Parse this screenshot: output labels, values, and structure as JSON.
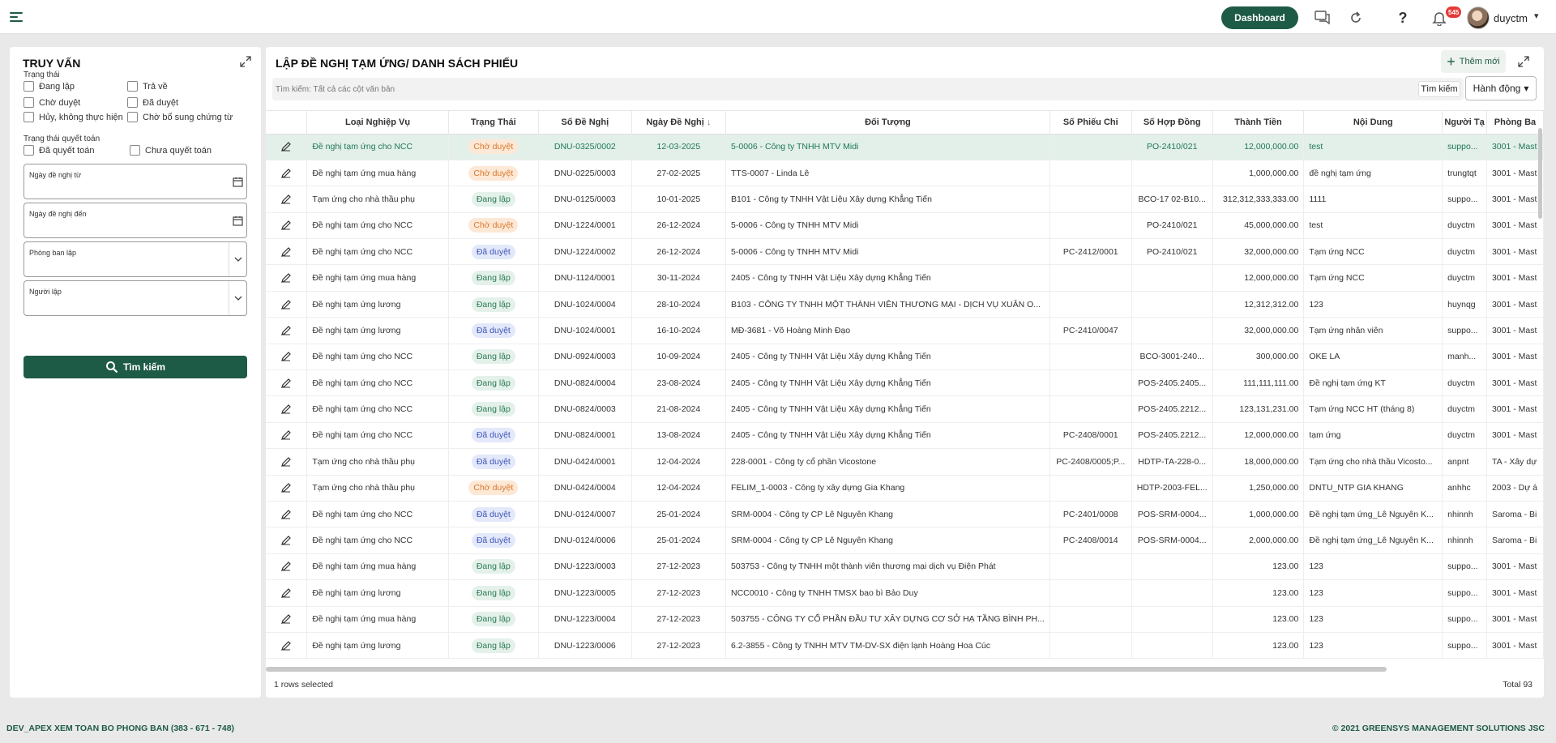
{
  "header": {
    "dashboard_label": "Dashboard",
    "notification_count": "545",
    "username": "duyctm"
  },
  "filter": {
    "title": "TRUY VẤN",
    "status_label": "Trạng thái",
    "status_options": [
      "Đang lập",
      "Trả về",
      "Chờ duyệt",
      "Đã duyệt",
      "Hủy, không thực hiện",
      "Chờ bổ sung chứng từ"
    ],
    "settlement_label": "Trạng thái quyết toán",
    "settlement_options": [
      "Đã quyết toán",
      "Chưa quyết toán"
    ],
    "date_from_label": "Ngày đề nghị từ",
    "date_to_label": "Ngày đề nghị đến",
    "department_label": "Phòng ban lập",
    "creator_label": "Người lập",
    "search_button": "Tìm kiếm"
  },
  "main": {
    "title": "LẬP ĐỀ NGHỊ TẠM ỨNG/ DANH SÁCH PHIẾU",
    "add_button": "Thêm mới",
    "search_placeholder": "Tìm kiếm: Tất cả các cột văn bản",
    "search_button": "Tìm kiếm",
    "actions_button": "Hành động",
    "columns": [
      "Loại Nghiệp Vụ",
      "Trạng Thái",
      "Số Đề Nghị",
      "Ngày Đề Nghị",
      "Đối Tượng",
      "Số Phiếu Chi",
      "Số Hợp Đồng",
      "Thành Tiền",
      "Nội Dung",
      "Người Tạ",
      "Phòng Ba"
    ],
    "rows": [
      {
        "type": "Đề nghị tạm ứng cho NCC",
        "status": "Chờ duyệt",
        "code": "wait",
        "no": "DNU-0325/0002",
        "date": "12-03-2025",
        "party": "5-0006 - Công ty TNHH MTV Midi",
        "pc": "",
        "hd": "PO-2410/021",
        "amount": "12,000,000.00",
        "content": "test",
        "creator": "suppo...",
        "dept": "3001 - Mast"
      },
      {
        "type": "Đề nghị tạm ứng mua hàng",
        "status": "Chờ duyệt",
        "code": "wait",
        "no": "DNU-0225/0003",
        "date": "27-02-2025",
        "party": "TTS-0007 - Linda Lê",
        "pc": "",
        "hd": "",
        "amount": "1,000,000.00",
        "content": "đề nghị tạm ứng",
        "creator": "trungtqt",
        "dept": "3001 - Mast"
      },
      {
        "type": "Tạm ứng cho nhà thầu phụ",
        "status": "Đang lập",
        "code": "draft",
        "no": "DNU-0125/0003",
        "date": "10-01-2025",
        "party": "B101 - Công ty TNHH Vật Liệu Xây dựng Khẳng Tiến",
        "pc": "",
        "hd": "BCO-17 02-B10...",
        "amount": "312,312,333,333.00",
        "content": "1111",
        "creator": "suppo...",
        "dept": "3001 - Mast"
      },
      {
        "type": "Đề nghị tạm ứng cho NCC",
        "status": "Chờ duyệt",
        "code": "wait",
        "no": "DNU-1224/0001",
        "date": "26-12-2024",
        "party": "5-0006 - Công ty TNHH MTV Midi",
        "pc": "",
        "hd": "PO-2410/021",
        "amount": "45,000,000.00",
        "content": "test",
        "creator": "duyctm",
        "dept": "3001 - Mast"
      },
      {
        "type": "Đề nghị tạm ứng cho NCC",
        "status": "Đã duyệt",
        "code": "ok",
        "no": "DNU-1224/0002",
        "date": "26-12-2024",
        "party": "5-0006 - Công ty TNHH MTV Midi",
        "pc": "PC-2412/0001",
        "hd": "PO-2410/021",
        "amount": "32,000,000.00",
        "content": "Tạm ứng NCC",
        "creator": "duyctm",
        "dept": "3001 - Mast"
      },
      {
        "type": "Đề nghị tạm ứng mua hàng",
        "status": "Đang lập",
        "code": "draft",
        "no": "DNU-1124/0001",
        "date": "30-11-2024",
        "party": "2405 - Công ty TNHH Vật Liệu Xây dựng Khẳng Tiến",
        "pc": "",
        "hd": "",
        "amount": "12,000,000.00",
        "content": "Tạm ứng NCC",
        "creator": "duyctm",
        "dept": "3001 - Mast"
      },
      {
        "type": "Đề nghị tạm ứng lương",
        "status": "Đang lập",
        "code": "draft",
        "no": "DNU-1024/0004",
        "date": "28-10-2024",
        "party": "B103 - CÔNG TY TNHH MỘT THÀNH VIÊN THƯƠNG MẠI - DỊCH VỤ XUÂN O...",
        "pc": "",
        "hd": "",
        "amount": "12,312,312.00",
        "content": "123",
        "creator": "huynqg",
        "dept": "3001 - Mast"
      },
      {
        "type": "Đề nghị tạm ứng lương",
        "status": "Đã duyệt",
        "code": "ok",
        "no": "DNU-1024/0001",
        "date": "16-10-2024",
        "party": "MĐ-3681 - Võ Hoàng Minh Đạo",
        "pc": "PC-2410/0047",
        "hd": "",
        "amount": "32,000,000.00",
        "content": "Tạm ứng nhân viên",
        "creator": "suppo...",
        "dept": "3001 - Mast"
      },
      {
        "type": "Đề nghị tạm ứng cho NCC",
        "status": "Đang lập",
        "code": "draft",
        "no": "DNU-0924/0003",
        "date": "10-09-2024",
        "party": "2405 - Công ty TNHH Vật Liệu Xây dựng Khẳng Tiến",
        "pc": "",
        "hd": "BCO-3001-240...",
        "amount": "300,000.00",
        "content": "OKE LA",
        "creator": "manh...",
        "dept": "3001 - Mast"
      },
      {
        "type": "Đề nghị tạm ứng cho NCC",
        "status": "Đang lập",
        "code": "draft",
        "no": "DNU-0824/0004",
        "date": "23-08-2024",
        "party": "2405 - Công ty TNHH Vật Liệu Xây dựng Khẳng Tiến",
        "pc": "",
        "hd": "POS-2405.2405...",
        "amount": "111,111,111.00",
        "content": "Đề nghị tạm ứng KT",
        "creator": "duyctm",
        "dept": "3001 - Mast"
      },
      {
        "type": "Đề nghị tạm ứng cho NCC",
        "status": "Đang lập",
        "code": "draft",
        "no": "DNU-0824/0003",
        "date": "21-08-2024",
        "party": "2405 - Công ty TNHH Vật Liệu Xây dựng Khẳng Tiến",
        "pc": "",
        "hd": "POS-2405.2212...",
        "amount": "123,131,231.00",
        "content": "Tạm ứng NCC HT (tháng 8)",
        "creator": "duyctm",
        "dept": "3001 - Mast"
      },
      {
        "type": "Đề nghị tạm ứng cho NCC",
        "status": "Đã duyệt",
        "code": "ok",
        "no": "DNU-0824/0001",
        "date": "13-08-2024",
        "party": "2405 - Công ty TNHH Vật Liệu Xây dựng Khẳng Tiến",
        "pc": "PC-2408/0001",
        "hd": "POS-2405.2212...",
        "amount": "12,000,000.00",
        "content": "tạm ứng",
        "creator": "duyctm",
        "dept": "3001 - Mast"
      },
      {
        "type": "Tạm ứng cho nhà thầu phụ",
        "status": "Đã duyệt",
        "code": "ok",
        "no": "DNU-0424/0001",
        "date": "12-04-2024",
        "party": "228-0001 - Công ty cổ phần Vicostone",
        "pc": "PC-2408/0005;P...",
        "hd": "HDTP-TA-228-0...",
        "amount": "18,000,000.00",
        "content": "Tạm ứng cho nhà thầu Vicosto...",
        "creator": "anpnt",
        "dept": "TA - Xây dự"
      },
      {
        "type": "Tạm ứng cho nhà thầu phụ",
        "status": "Chờ duyệt",
        "code": "wait",
        "no": "DNU-0424/0004",
        "date": "12-04-2024",
        "party": "FELIM_1-0003 - Công ty xây dựng Gia Khang",
        "pc": "",
        "hd": "HDTP-2003-FEL...",
        "amount": "1,250,000.00",
        "content": "DNTU_NTP GIA KHANG",
        "creator": "anhhc",
        "dept": "2003 - Dự á"
      },
      {
        "type": "Đề nghị tạm ứng cho NCC",
        "status": "Đã duyệt",
        "code": "ok",
        "no": "DNU-0124/0007",
        "date": "25-01-2024",
        "party": "SRM-0004 - Công ty CP Lê Nguyên Khang",
        "pc": "PC-2401/0008",
        "hd": "POS-SRM-0004...",
        "amount": "1,000,000.00",
        "content": "Đề nghị tạm ứng_Lê Nguyên K...",
        "creator": "nhinnh",
        "dept": "Saroma - Bi"
      },
      {
        "type": "Đề nghị tạm ứng cho NCC",
        "status": "Đã duyệt",
        "code": "ok",
        "no": "DNU-0124/0006",
        "date": "25-01-2024",
        "party": "SRM-0004 - Công ty CP Lê Nguyên Khang",
        "pc": "PC-2408/0014",
        "hd": "POS-SRM-0004...",
        "amount": "2,000,000.00",
        "content": "Đề nghị tạm ứng_Lê Nguyên K...",
        "creator": "nhinnh",
        "dept": "Saroma - Bi"
      },
      {
        "type": "Đề nghị tạm ứng mua hàng",
        "status": "Đang lập",
        "code": "draft",
        "no": "DNU-1223/0003",
        "date": "27-12-2023",
        "party": "503753 - Công ty TNHH một thành viên thương mại dịch vụ Điện Phát",
        "pc": "",
        "hd": "",
        "amount": "123.00",
        "content": "123",
        "creator": "suppo...",
        "dept": "3001 - Mast"
      },
      {
        "type": "Đề nghị tạm ứng lương",
        "status": "Đang lập",
        "code": "draft",
        "no": "DNU-1223/0005",
        "date": "27-12-2023",
        "party": "NCC0010 - Công ty TNHH TMSX bao bì Bảo Duy",
        "pc": "",
        "hd": "",
        "amount": "123.00",
        "content": "123",
        "creator": "suppo...",
        "dept": "3001 - Mast"
      },
      {
        "type": "Đề nghị tạm ứng mua hàng",
        "status": "Đang lập",
        "code": "draft",
        "no": "DNU-1223/0004",
        "date": "27-12-2023",
        "party": "503755 - CÔNG TY CỔ PHẦN ĐẦU TƯ XÂY DỰNG CƠ SỞ HẠ TẦNG BÌNH PH...",
        "pc": "",
        "hd": "",
        "amount": "123.00",
        "content": "123",
        "creator": "suppo...",
        "dept": "3001 - Mast"
      },
      {
        "type": "Đề nghị tạm ứng lương",
        "status": "Đang lập",
        "code": "draft",
        "no": "DNU-1223/0006",
        "date": "27-12-2023",
        "party": "6.2-3855 - Công ty TNHH MTV TM-DV-SX điện lạnh Hoàng Hoa Cúc",
        "pc": "",
        "hd": "",
        "amount": "123.00",
        "content": "123",
        "creator": "suppo...",
        "dept": "3001 - Mast"
      }
    ],
    "rows_selected": "1 rows selected",
    "total": "Total 93"
  },
  "footer": {
    "left": "DEV_APEX XEM TOAN BO PHONG BAN (383 - 671 - 748)",
    "right": "© 2021 GREENSYS MANAGEMENT SOLUTIONS JSC"
  },
  "colors": {
    "accent": "#1e5b46",
    "selected_row": "#e3efe9",
    "draft": "#2d7a56",
    "waiting": "#d9782b",
    "approved": "#3d55b8"
  }
}
